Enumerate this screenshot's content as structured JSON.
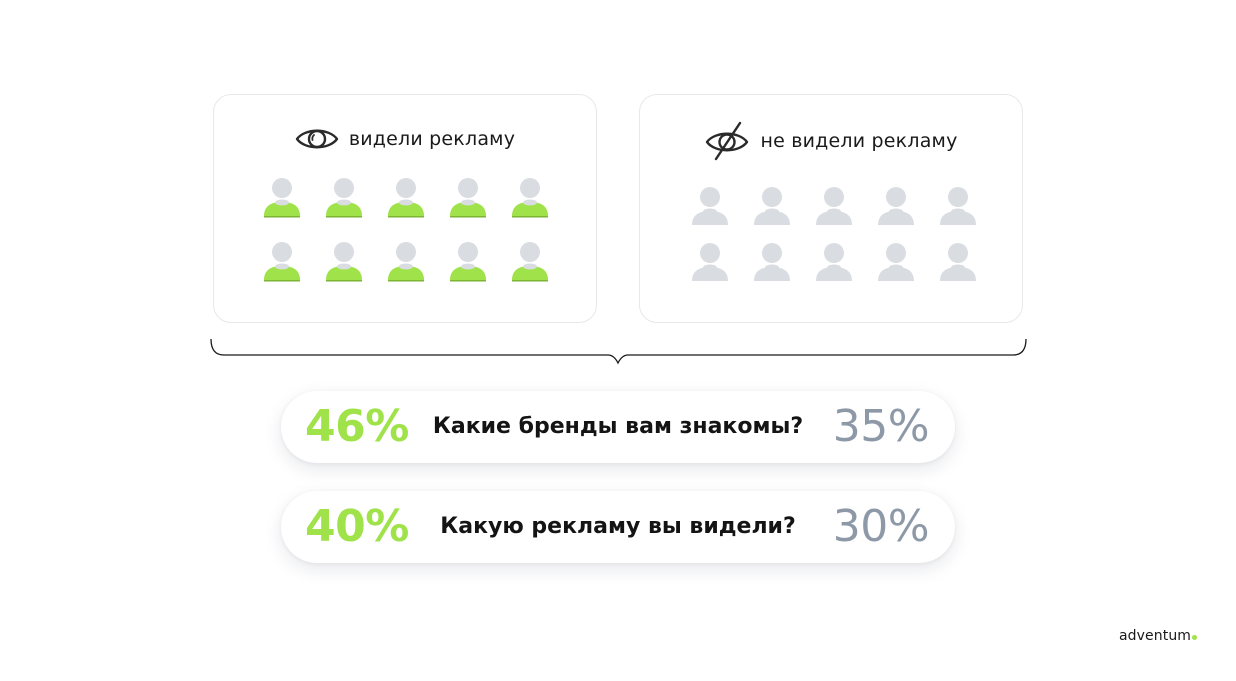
{
  "groups": {
    "seen": {
      "label": "видели рекламу",
      "icon": "eye-icon",
      "people_count": 10,
      "person_color": "#a0e24a"
    },
    "unseen": {
      "label": "не видели рекламу",
      "icon": "eye-crossed-icon",
      "people_count": 10,
      "person_color": "#d9dde2"
    }
  },
  "stats": [
    {
      "question": "Какие бренды вам знакомы?",
      "seen_pct": "46%",
      "unseen_pct": "35%"
    },
    {
      "question": "Какую рекламу вы видели?",
      "seen_pct": "40%",
      "unseen_pct": "30%"
    }
  ],
  "colors": {
    "accent_green": "#a0e24a",
    "muted_gray": "#8e99a8",
    "person_gray": "#d9dde2"
  },
  "logo": {
    "text": "adventum"
  }
}
